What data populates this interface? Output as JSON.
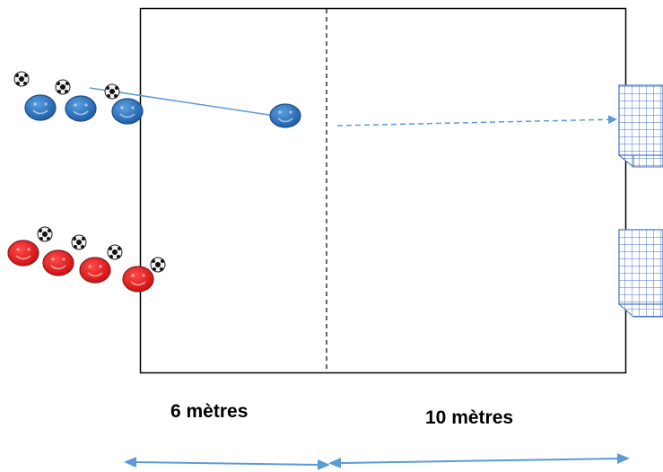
{
  "labels": {
    "left_distance": "6 mètres",
    "right_distance": "10 mètres"
  },
  "colors": {
    "field_line": "#000000",
    "blue_team": "#2e75b6",
    "red_team": "#e02020",
    "pass_arrow": "#5b9bd5",
    "dimension_arrow": "#5b9bd5",
    "goal_net": "#4472c4"
  },
  "players": {
    "blue_count": 4,
    "red_count": 4
  },
  "goals": {
    "count": 2
  }
}
